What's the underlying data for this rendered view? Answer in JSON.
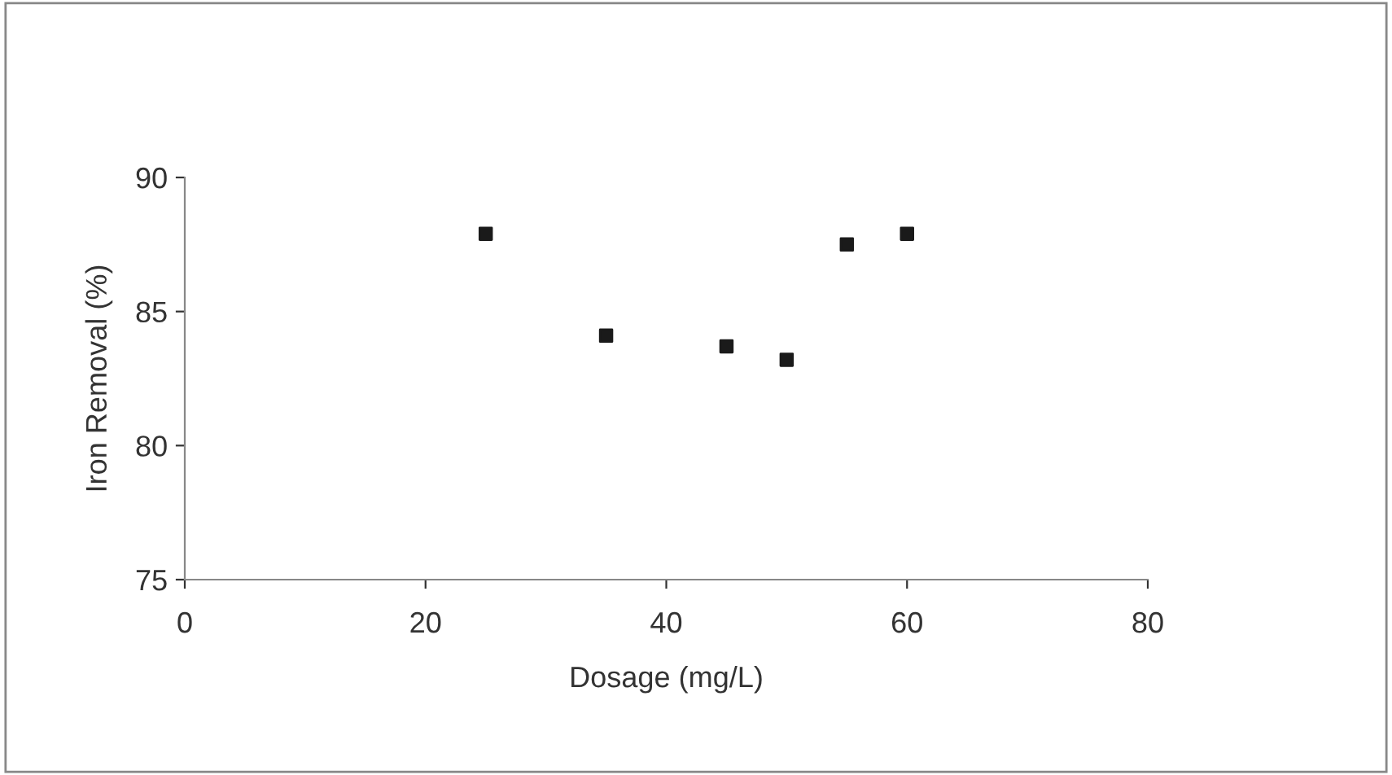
{
  "chart_data": {
    "type": "scatter",
    "xlabel": "Dosage (mg/L)",
    "ylabel": "Iron Removal (%)",
    "x": [
      25,
      35,
      45,
      50,
      55,
      60
    ],
    "series": [
      {
        "color": "#1a1a1a",
        "values": [
          87.9,
          84.1,
          83.7,
          83.2,
          87.5,
          87.9
        ]
      }
    ],
    "xlim": [
      0,
      80
    ],
    "xticks": [
      0,
      20,
      40,
      60,
      80
    ],
    "ylim": [
      75,
      90
    ],
    "yticks": [
      75,
      80,
      85,
      90
    ],
    "marker": "square",
    "grid": false,
    "legend": false
  }
}
